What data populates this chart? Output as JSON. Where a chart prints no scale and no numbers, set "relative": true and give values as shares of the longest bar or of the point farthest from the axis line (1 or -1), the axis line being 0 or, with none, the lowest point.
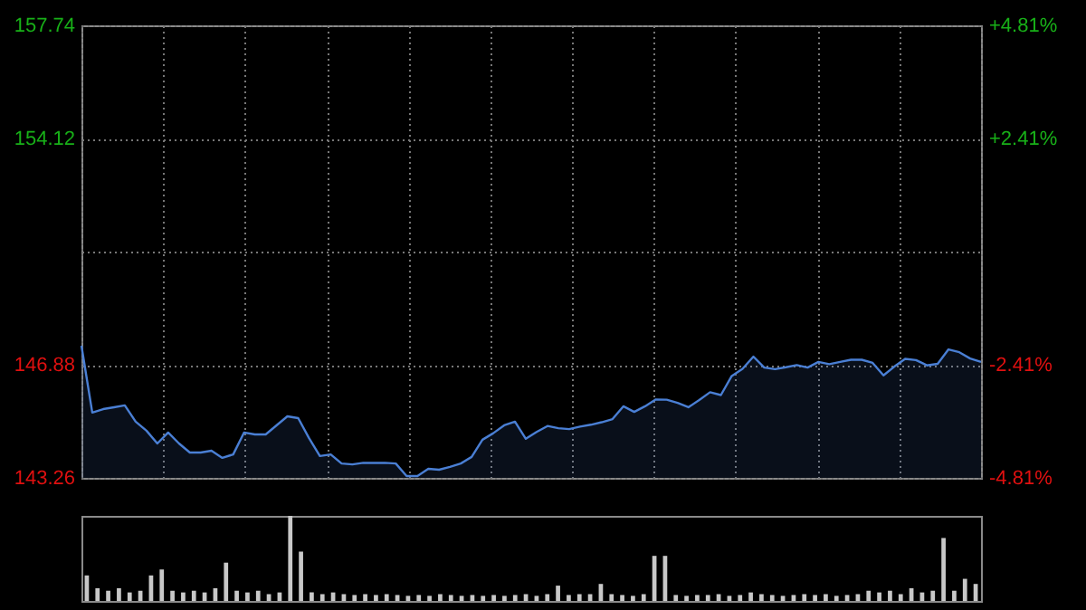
{
  "chart_data": [
    {
      "type": "area",
      "categories": [
        null,
        null,
        null,
        null,
        null,
        null,
        null,
        null,
        null,
        null,
        null,
        null,
        null,
        null,
        null,
        null,
        null,
        null,
        null,
        null,
        null,
        null,
        null,
        null,
        null,
        null,
        null,
        null,
        null,
        null,
        null,
        null,
        null,
        null,
        null,
        null,
        null,
        null,
        null,
        null,
        null,
        null,
        null,
        null,
        null,
        null,
        null,
        null,
        null,
        null,
        null,
        null,
        null,
        null,
        null,
        null,
        null,
        null,
        null,
        null,
        null,
        null,
        null,
        null,
        null,
        null,
        null,
        null,
        null,
        null,
        null,
        null,
        null,
        null,
        null,
        null,
        null,
        null,
        null,
        null,
        null,
        null,
        null,
        null
      ],
      "series": [
        {
          "color": "#4a7fd4",
          "values": [
            147.49,
            145.35,
            145.46,
            145.52,
            145.58,
            145.06,
            144.77,
            144.36,
            144.71,
            144.36,
            144.07,
            144.07,
            144.13,
            143.9,
            144.01,
            144.71,
            144.65,
            144.65,
            144.94,
            145.23,
            145.17,
            144.53,
            143.96,
            144.01,
            143.72,
            143.69,
            143.74,
            143.74,
            143.74,
            143.72,
            143.32,
            143.32,
            143.55,
            143.52,
            143.61,
            143.72,
            143.93,
            144.48,
            144.69,
            144.94,
            145.06,
            144.51,
            144.73,
            144.92,
            144.85,
            144.82,
            144.9,
            144.96,
            145.04,
            145.14,
            145.55,
            145.37,
            145.55,
            145.77,
            145.76,
            145.66,
            145.52,
            145.75,
            146.0,
            145.91,
            146.52,
            146.75,
            147.14,
            146.79,
            146.74,
            146.8,
            146.87,
            146.79,
            146.97,
            146.9,
            146.97,
            147.04,
            147.04,
            146.94,
            146.54,
            146.82,
            147.07,
            147.03,
            146.86,
            146.91,
            147.37,
            147.28,
            147.08,
            146.97
          ]
        }
      ],
      "ylim": [
        143.26,
        157.74
      ],
      "yticks": [
        143.26,
        146.88,
        {
          "value": 150.5,
          "label": null
        },
        154.12,
        157.74
      ],
      "y2lim": [
        -4.81,
        4.81
      ],
      "y2ticks": [
        {
          "value": -4.81,
          "label": "-4.81%"
        },
        {
          "value": -2.41,
          "label": "-2.41%"
        },
        {
          "value": 2.41,
          "label": "+2.41%"
        },
        {
          "value": 4.81,
          "label": "+4.81%"
        }
      ],
      "grid": true
    },
    {
      "type": "bar",
      "relative": true,
      "categories": [
        null,
        null,
        null,
        null,
        null,
        null,
        null,
        null,
        null,
        null,
        null,
        null,
        null,
        null,
        null,
        null,
        null,
        null,
        null,
        null,
        null,
        null,
        null,
        null,
        null,
        null,
        null,
        null,
        null,
        null,
        null,
        null,
        null,
        null,
        null,
        null,
        null,
        null,
        null,
        null,
        null,
        null,
        null,
        null,
        null,
        null,
        null,
        null,
        null,
        null,
        null,
        null,
        null,
        null,
        null,
        null,
        null,
        null,
        null,
        null,
        null,
        null,
        null,
        null,
        null,
        null,
        null,
        null,
        null,
        null,
        null,
        null,
        null,
        null,
        null,
        null,
        null,
        null,
        null,
        null,
        null,
        null,
        null,
        null
      ],
      "series": [
        {
          "color": "#c8c8c8",
          "values": [
            0.3,
            0.15,
            0.12,
            0.15,
            0.1,
            0.12,
            0.3,
            0.37,
            0.12,
            0.1,
            0.12,
            0.1,
            0.15,
            0.45,
            0.12,
            0.1,
            0.12,
            0.08,
            0.1,
            1.0,
            0.58,
            0.1,
            0.08,
            0.1,
            0.08,
            0.07,
            0.08,
            0.07,
            0.08,
            0.07,
            0.06,
            0.07,
            0.06,
            0.08,
            0.07,
            0.06,
            0.07,
            0.06,
            0.07,
            0.06,
            0.07,
            0.08,
            0.06,
            0.08,
            0.18,
            0.07,
            0.08,
            0.08,
            0.2,
            0.08,
            0.07,
            0.06,
            0.08,
            0.53,
            0.53,
            0.07,
            0.06,
            0.07,
            0.07,
            0.08,
            0.06,
            0.07,
            0.1,
            0.08,
            0.07,
            0.06,
            0.07,
            0.08,
            0.07,
            0.08,
            0.06,
            0.07,
            0.08,
            0.12,
            0.1,
            0.12,
            0.08,
            0.15,
            0.1,
            0.12,
            0.74,
            0.12,
            0.26,
            0.2
          ]
        }
      ]
    }
  ]
}
